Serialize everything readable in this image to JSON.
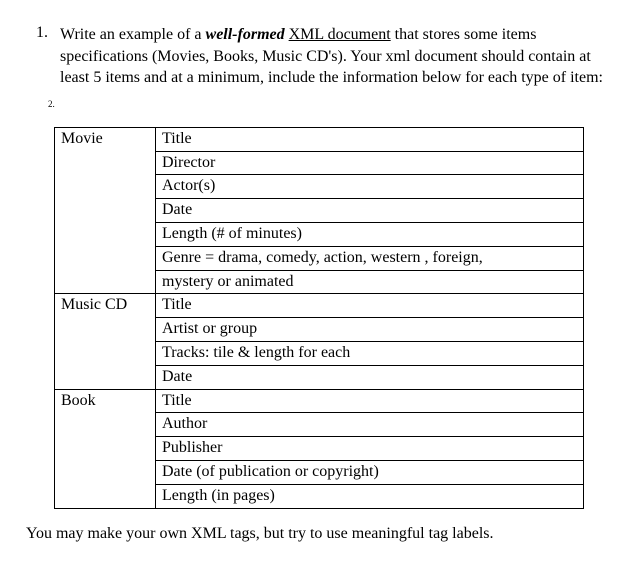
{
  "question": {
    "number": "1.",
    "text_before_bold": "Write an example of a ",
    "bold_italic": "well-formed",
    "space1": " ",
    "underline1": "XML  document",
    "text_after_underline": " that stores some items specifications (Movies, Books, Music  CD's). Your xml document  should contain at least 5 items and at a minimum, include the information below for each type of item:"
  },
  "tiny_number": "2.",
  "table": {
    "rows": [
      {
        "label": "Movie",
        "lines": [
          "Title",
          "Director",
          "Actor(s)",
          "Date",
          "Length (# of minutes)",
          "Genre = drama, comedy, action, western , foreign,",
          "mystery or animated"
        ]
      },
      {
        "label": "Music CD",
        "lines": [
          "Title",
          "Artist or group",
          "Tracks: tile & length for each",
          "Date"
        ]
      },
      {
        "label": "Book",
        "lines": [
          "Title",
          "Author",
          "Publisher",
          "Date (of publication or copyright)",
          "Length (in pages)"
        ]
      }
    ]
  },
  "footer": "You may make your own XML tags, but try to use meaningful tag labels."
}
